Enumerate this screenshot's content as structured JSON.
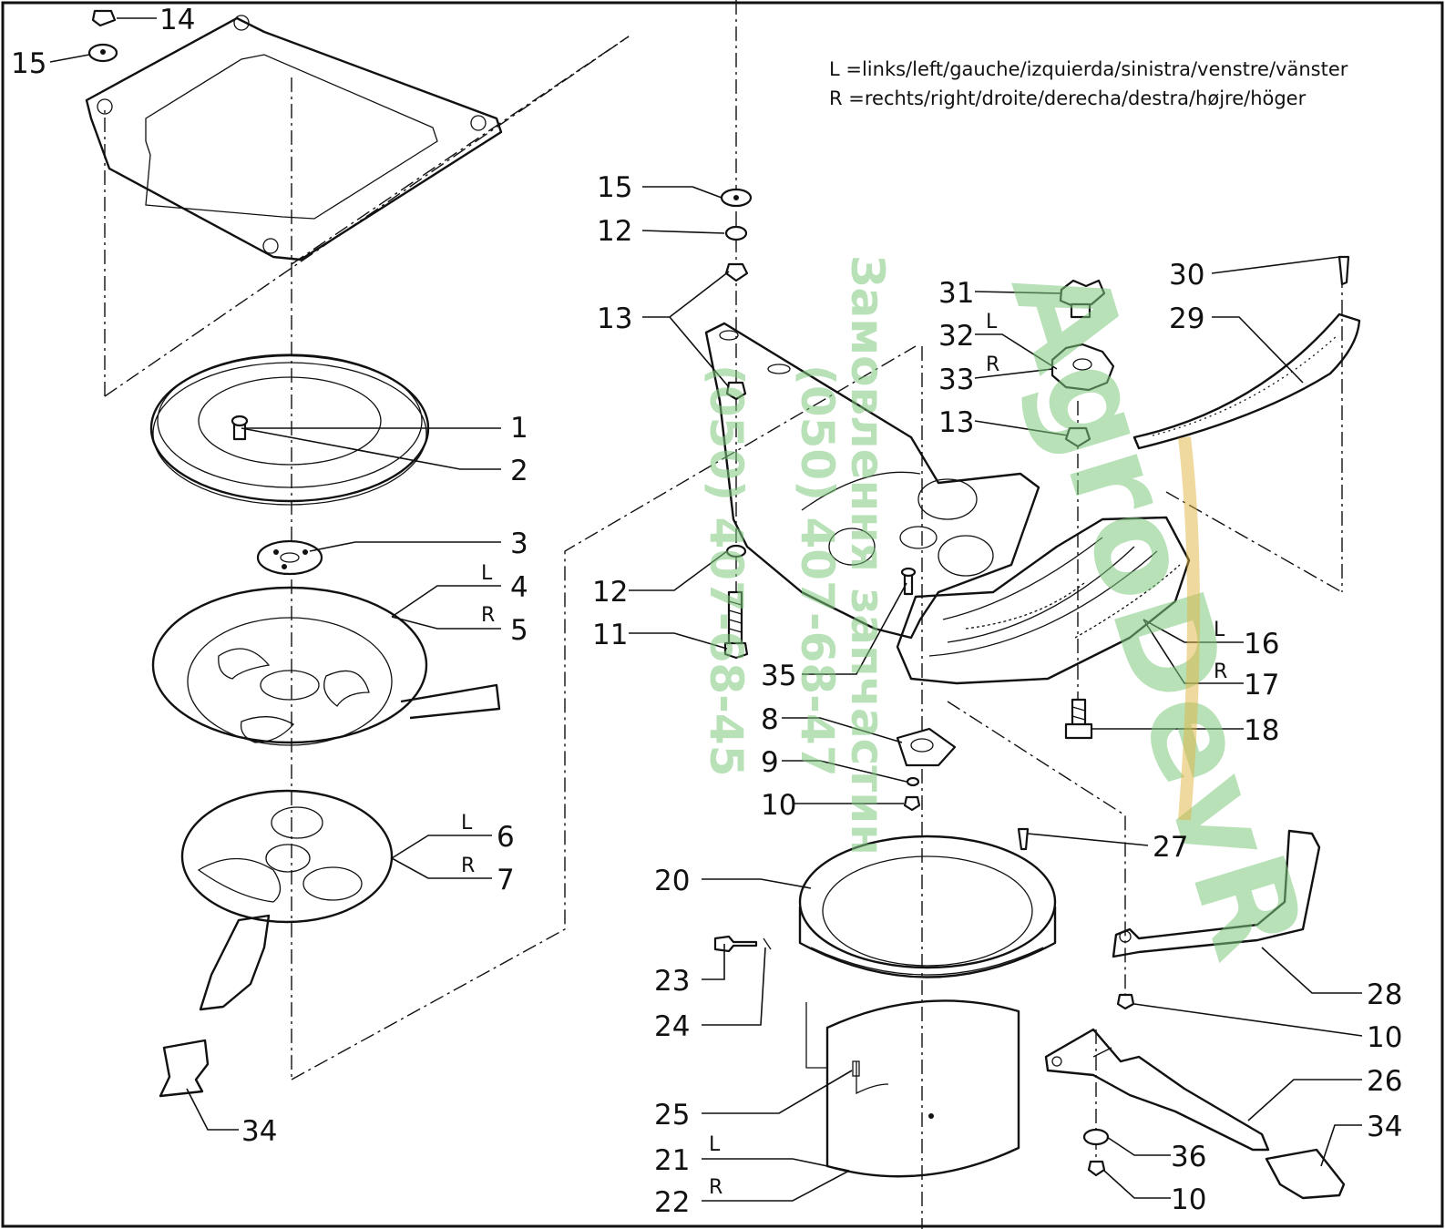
{
  "legend": {
    "left": "L  =links/left/gauche/izquierda/sinistra/venstre/vänster",
    "right": "R  =rechts/right/droite/derecha/destra/højre/höger"
  },
  "callouts": {
    "c1": "1",
    "c2": "2",
    "c3": "3",
    "c4": "4",
    "c5": "5",
    "c6": "6",
    "c7": "7",
    "c8": "8",
    "c9": "9",
    "c10a": "10",
    "c10b": "10",
    "c10c": "10",
    "c11": "11",
    "c12a": "12",
    "c12b": "12",
    "c13a": "13",
    "c13b": "13",
    "c14": "14",
    "c15a": "15",
    "c15b": "15",
    "c16": "16",
    "c17": "17",
    "c18": "18",
    "c20": "20",
    "c21": "21",
    "c22": "22",
    "c23": "23",
    "c24": "24",
    "c25": "25",
    "c26": "26",
    "c27": "27",
    "c28": "28",
    "c29": "29",
    "c30": "30",
    "c31": "31",
    "c32": "32",
    "c33": "33",
    "c34a": "34",
    "c34b": "34",
    "c35": "35",
    "c36": "36"
  },
  "side_marks": {
    "s4": "L",
    "s5": "R",
    "s6": "L",
    "s7": "R",
    "s16": "L",
    "s17": "R",
    "s21": "L",
    "s22": "R",
    "s32": "L",
    "s33": "R"
  },
  "watermark": {
    "brand": "AgroDevR",
    "line1": "Замовлення запчастин",
    "line2": "(050) 407-68-47",
    "line3": "(050) 407-68-45"
  }
}
